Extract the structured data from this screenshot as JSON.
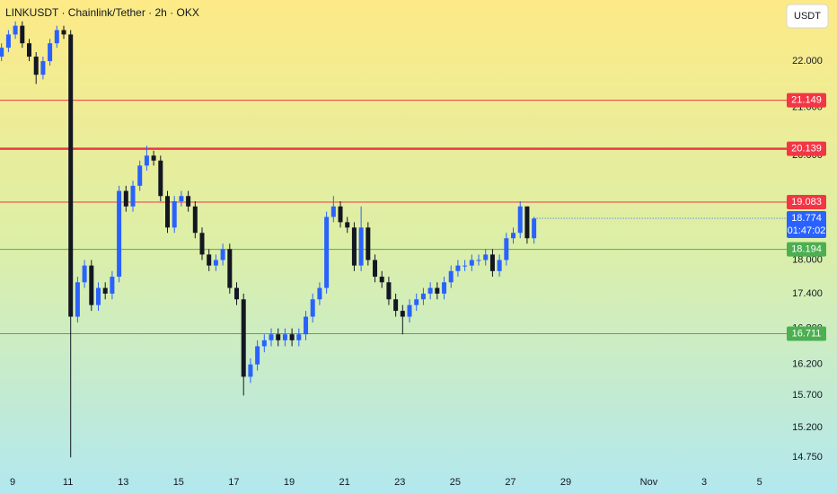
{
  "chart_data": {
    "type": "candlestick",
    "title": "LINKUSDT · Chainlink/Tether · 2h · OKX",
    "currency": "USDT",
    "x": [
      8.6,
      8.85,
      9.1,
      9.35,
      9.6,
      9.85,
      10.1,
      10.35,
      10.6,
      10.85,
      11.1,
      11.35,
      11.6,
      11.85,
      12.1,
      12.35,
      12.6,
      12.85,
      13.1,
      13.35,
      13.6,
      13.85,
      14.1,
      14.35,
      14.6,
      14.85,
      15.1,
      15.35,
      15.6,
      15.85,
      16.1,
      16.35,
      16.6,
      16.85,
      17.1,
      17.35,
      17.6,
      17.85,
      18.1,
      18.35,
      18.6,
      18.85,
      19.1,
      19.35,
      19.6,
      19.85,
      20.1,
      20.35,
      20.6,
      20.85,
      21.1,
      21.35,
      21.6,
      21.85,
      22.1,
      22.35,
      22.6,
      22.85,
      23.1,
      23.35,
      23.6,
      23.85,
      24.1,
      24.35,
      24.6,
      24.85,
      25.1,
      25.35,
      25.6,
      25.85,
      26.1,
      26.35,
      26.6,
      26.85,
      27.1,
      27.35,
      27.6,
      27.85
    ],
    "open": [
      22.1,
      22.3,
      22.6,
      22.8,
      22.4,
      22.1,
      21.7,
      22.0,
      22.4,
      22.7,
      22.6,
      17.0,
      17.6,
      17.9,
      17.2,
      17.5,
      17.4,
      17.7,
      19.3,
      19.0,
      19.4,
      19.8,
      20.0,
      19.9,
      19.2,
      18.6,
      19.1,
      19.2,
      19.0,
      18.5,
      18.1,
      17.9,
      18.0,
      18.2,
      17.5,
      17.3,
      16.0,
      16.2,
      16.5,
      16.6,
      16.7,
      16.6,
      16.7,
      16.6,
      16.7,
      17.0,
      17.3,
      17.5,
      18.8,
      19.0,
      18.7,
      18.6,
      17.9,
      18.6,
      18.0,
      17.7,
      17.6,
      17.3,
      17.1,
      17.0,
      17.2,
      17.3,
      17.4,
      17.5,
      17.4,
      17.6,
      17.8,
      17.9,
      17.9,
      18.0,
      18.0,
      18.1,
      17.8,
      18.0,
      18.4,
      18.5,
      19.0,
      18.4
    ],
    "high": [
      22.4,
      22.7,
      22.9,
      22.9,
      22.5,
      22.2,
      22.1,
      22.5,
      22.8,
      22.8,
      22.7,
      17.7,
      18.0,
      18.0,
      17.6,
      17.6,
      17.8,
      19.4,
      19.4,
      19.5,
      19.9,
      20.2,
      20.1,
      20.0,
      19.3,
      19.2,
      19.3,
      19.3,
      19.1,
      18.6,
      18.2,
      18.1,
      18.3,
      18.3,
      17.6,
      17.4,
      16.3,
      16.6,
      16.7,
      16.8,
      16.8,
      16.8,
      16.8,
      16.8,
      17.1,
      17.4,
      17.6,
      18.9,
      19.2,
      19.1,
      18.8,
      18.7,
      19.0,
      18.7,
      18.1,
      17.8,
      17.7,
      17.4,
      17.2,
      17.3,
      17.4,
      17.5,
      17.6,
      17.6,
      17.7,
      17.9,
      18.0,
      18.0,
      18.1,
      18.1,
      18.2,
      18.2,
      18.1,
      18.5,
      18.6,
      19.1,
      19.0,
      18.8
    ],
    "low": [
      22.0,
      22.2,
      22.5,
      22.3,
      22.0,
      21.5,
      21.6,
      21.9,
      22.3,
      22.5,
      14.75,
      16.9,
      17.5,
      17.1,
      17.1,
      17.3,
      17.3,
      17.6,
      18.9,
      18.9,
      19.3,
      19.7,
      19.8,
      19.1,
      18.5,
      18.5,
      19.0,
      18.9,
      18.4,
      18.0,
      17.8,
      17.8,
      17.9,
      17.4,
      17.2,
      15.7,
      15.9,
      16.1,
      16.4,
      16.5,
      16.5,
      16.5,
      16.5,
      16.5,
      16.6,
      16.9,
      17.2,
      17.4,
      18.7,
      18.6,
      18.5,
      17.8,
      17.8,
      17.9,
      17.6,
      17.5,
      17.2,
      17.0,
      16.7,
      16.9,
      17.1,
      17.2,
      17.3,
      17.3,
      17.3,
      17.5,
      17.7,
      17.8,
      17.8,
      17.9,
      17.9,
      17.7,
      17.7,
      17.9,
      18.3,
      18.4,
      18.3,
      18.3
    ],
    "close": [
      22.3,
      22.6,
      22.8,
      22.4,
      22.1,
      21.7,
      22.0,
      22.4,
      22.7,
      22.6,
      17.0,
      17.6,
      17.9,
      17.2,
      17.5,
      17.4,
      17.7,
      19.3,
      19.0,
      19.4,
      19.8,
      20.0,
      19.9,
      19.2,
      18.6,
      19.1,
      19.2,
      19.0,
      18.5,
      18.1,
      17.9,
      18.0,
      18.2,
      17.5,
      17.3,
      16.0,
      16.2,
      16.5,
      16.6,
      16.7,
      16.6,
      16.7,
      16.6,
      16.7,
      17.0,
      17.3,
      17.5,
      18.8,
      19.0,
      18.7,
      18.6,
      17.9,
      18.6,
      18.0,
      17.7,
      17.6,
      17.3,
      17.1,
      17.0,
      17.2,
      17.3,
      17.4,
      17.5,
      17.4,
      17.6,
      17.8,
      17.9,
      17.9,
      18.0,
      18.0,
      18.1,
      17.8,
      18.0,
      18.4,
      18.5,
      19.0,
      18.4,
      18.77
    ],
    "up_color": "#2962ff",
    "down_color": "#131722",
    "xlim": [
      8.545,
      36.66
    ],
    "xticks": [
      9,
      11,
      13,
      15,
      17,
      19,
      21,
      23,
      25,
      27,
      29,
      {
        "value": 32,
        "label": "Nov"
      },
      {
        "value": 34,
        "label": "3"
      },
      {
        "value": 36,
        "label": "5"
      }
    ],
    "ylim": [
      14.58,
      23.4
    ],
    "log_scale": true,
    "yticks": [
      {
        "value": 22,
        "label": "22.000"
      },
      {
        "value": 21,
        "label": "21.000"
      },
      {
        "value": 20,
        "label": "20.000"
      },
      {
        "value": 18,
        "label": "18.000"
      },
      {
        "value": 17.4,
        "label": "17.400"
      },
      {
        "value": 16.8,
        "label": "16.800"
      },
      {
        "value": 16.2,
        "label": "16.200"
      },
      {
        "value": 15.7,
        "label": "15.700"
      },
      {
        "value": 15.2,
        "label": "15.200"
      },
      {
        "value": 14.75,
        "label": "14.750"
      }
    ],
    "levels": [
      {
        "value": 21.149,
        "color": "#f23645",
        "width": 1
      },
      {
        "value": 20.139,
        "color": "#f23645",
        "width": 2.5
      },
      {
        "value": 19.083,
        "color": "#f23645",
        "width": 1
      },
      {
        "value": 18.194,
        "color": "#4caf50",
        "width": 1
      },
      {
        "value": 16.711,
        "color": "#4caf50",
        "width": 1
      }
    ],
    "last_price": {
      "value": 18.774,
      "countdown": "01:47:02",
      "color": "#2962ff"
    }
  }
}
